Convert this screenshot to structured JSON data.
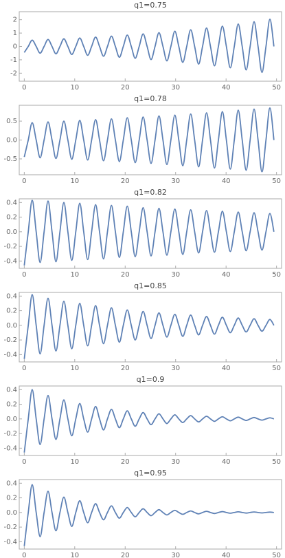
{
  "chart_data": [
    {
      "type": "line",
      "title": "q1=0.75",
      "color": "#5e81b5",
      "x": [
        0,
        0.79,
        1.57,
        2.36,
        3.14,
        3.93,
        4.71,
        5.5,
        6.28,
        7.07,
        7.85,
        8.64,
        9.42,
        10.21,
        11.0,
        11.78,
        12.57,
        13.35,
        14.14,
        14.92,
        15.71,
        16.49,
        17.28,
        18.06,
        18.85,
        19.63,
        20.42,
        21.21,
        21.99,
        22.78,
        23.56,
        24.35,
        25.13,
        25.92,
        26.7,
        27.49,
        28.27,
        29.06,
        29.85,
        30.63,
        31.42,
        32.2,
        32.99,
        33.77,
        34.56,
        35.34,
        36.13,
        36.91,
        37.7,
        38.48,
        39.27,
        40.06,
        40.84,
        41.63,
        42.41,
        43.2,
        43.98,
        44.77,
        45.55,
        46.34,
        47.12,
        47.91,
        48.69,
        49.48
      ],
      "values": [
        -0.45,
        0,
        0.47,
        0,
        -0.5,
        0,
        0.52,
        0,
        -0.55,
        0,
        0.57,
        0,
        -0.6,
        0,
        0.63,
        0,
        -0.66,
        0,
        0.7,
        0,
        -0.73,
        0,
        0.77,
        0,
        -0.81,
        0,
        0.85,
        0,
        -0.89,
        0,
        0.94,
        0,
        -0.98,
        0,
        1.03,
        0,
        -1.08,
        0,
        1.14,
        0,
        -1.19,
        0,
        1.25,
        0,
        -1.32,
        0,
        1.38,
        0,
        -1.45,
        0,
        1.52,
        0,
        -1.6,
        0,
        1.68,
        0,
        -1.76,
        0,
        1.85,
        0,
        -1.94,
        0,
        2.04,
        0
      ],
      "xlim": [
        -1,
        51
      ],
      "xticks": [
        0,
        10,
        20,
        30,
        40,
        50
      ],
      "ylim": [
        -2.6,
        2.6
      ],
      "yticks": [
        -2,
        -1,
        0,
        1,
        2
      ]
    },
    {
      "type": "line",
      "title": "q1=0.78",
      "color": "#5e81b5",
      "x": [
        0,
        0.79,
        1.57,
        2.36,
        3.14,
        3.93,
        4.71,
        5.5,
        6.28,
        7.07,
        7.85,
        8.64,
        9.42,
        10.21,
        11.0,
        11.78,
        12.57,
        13.35,
        14.14,
        14.92,
        15.71,
        16.49,
        17.28,
        18.06,
        18.85,
        19.63,
        20.42,
        21.21,
        21.99,
        22.78,
        23.56,
        24.35,
        25.13,
        25.92,
        26.7,
        27.49,
        28.27,
        29.06,
        29.85,
        30.63,
        31.42,
        32.2,
        32.99,
        33.77,
        34.56,
        35.34,
        36.13,
        36.91,
        37.7,
        38.48,
        39.27,
        40.06,
        40.84,
        41.63,
        42.41,
        43.2,
        43.98,
        44.77,
        45.55,
        46.34,
        47.12,
        47.91,
        48.69,
        49.48
      ],
      "values": [
        -0.45,
        0,
        0.46,
        0,
        -0.47,
        0,
        0.48,
        0,
        -0.49,
        0,
        0.5,
        0,
        -0.51,
        0,
        0.52,
        0,
        -0.53,
        0,
        0.54,
        0,
        -0.55,
        0,
        0.56,
        0,
        -0.57,
        0,
        0.59,
        0,
        -0.6,
        0,
        0.61,
        0,
        -0.62,
        0,
        0.64,
        0,
        -0.65,
        0,
        0.66,
        0,
        -0.68,
        0,
        0.69,
        0,
        -0.71,
        0,
        0.72,
        0,
        -0.74,
        0,
        0.75,
        0,
        -0.77,
        0,
        0.79,
        0,
        -0.8,
        0,
        0.82,
        0,
        -0.84,
        0,
        0.85,
        0
      ],
      "xlim": [
        -1,
        51
      ],
      "xticks": [
        0,
        10,
        20,
        30,
        40,
        50
      ],
      "ylim": [
        -0.92,
        0.92
      ],
      "yticks": [
        -0.5,
        {
          "value": 0,
          "label": "0.0"
        },
        0.5
      ]
    },
    {
      "type": "line",
      "title": "q1=0.82",
      "color": "#5e81b5",
      "x": [
        0,
        0.79,
        1.57,
        2.36,
        3.14,
        3.93,
        4.71,
        5.5,
        6.28,
        7.07,
        7.85,
        8.64,
        9.42,
        10.21,
        11.0,
        11.78,
        12.57,
        13.35,
        14.14,
        14.92,
        15.71,
        16.49,
        17.28,
        18.06,
        18.85,
        19.63,
        20.42,
        21.21,
        21.99,
        22.78,
        23.56,
        24.35,
        25.13,
        25.92,
        26.7,
        27.49,
        28.27,
        29.06,
        29.85,
        30.63,
        31.42,
        32.2,
        32.99,
        33.77,
        34.56,
        35.34,
        36.13,
        36.91,
        37.7,
        38.48,
        39.27,
        40.06,
        40.84,
        41.63,
        42.41,
        43.2,
        43.98,
        44.77,
        45.55,
        46.34,
        47.12,
        47.91,
        48.69,
        49.48
      ],
      "values": [
        -0.46,
        0,
        0.43,
        0,
        -0.42,
        0,
        0.42,
        0,
        -0.41,
        0,
        0.4,
        0,
        -0.39,
        0,
        0.39,
        0,
        -0.38,
        0,
        0.37,
        0,
        -0.37,
        0,
        0.36,
        0,
        -0.35,
        0,
        0.35,
        0,
        -0.34,
        0,
        0.33,
        0,
        -0.33,
        0,
        0.32,
        0,
        -0.32,
        0,
        0.31,
        0,
        -0.31,
        0,
        0.3,
        0,
        -0.29,
        0,
        0.29,
        0,
        -0.28,
        0,
        0.28,
        0,
        -0.27,
        0,
        0.27,
        0,
        -0.26,
        0,
        0.26,
        0,
        -0.25,
        0,
        0.25,
        0
      ],
      "xlim": [
        -1,
        51
      ],
      "xticks": [
        0,
        10,
        20,
        30,
        40,
        50
      ],
      "ylim": [
        -0.5,
        0.45
      ],
      "yticks": [
        -0.4,
        -0.2,
        {
          "value": 0,
          "label": "0.0"
        },
        0.2,
        0.4
      ]
    },
    {
      "type": "line",
      "title": "q1=0.85",
      "color": "#5e81b5",
      "x": [
        0,
        0.79,
        1.57,
        2.36,
        3.14,
        3.93,
        4.71,
        5.5,
        6.28,
        7.07,
        7.85,
        8.64,
        9.42,
        10.21,
        11.0,
        11.78,
        12.57,
        13.35,
        14.14,
        14.92,
        15.71,
        16.49,
        17.28,
        18.06,
        18.85,
        19.63,
        20.42,
        21.21,
        21.99,
        22.78,
        23.56,
        24.35,
        25.13,
        25.92,
        26.7,
        27.49,
        28.27,
        29.06,
        29.85,
        30.63,
        31.42,
        32.2,
        32.99,
        33.77,
        34.56,
        35.34,
        36.13,
        36.91,
        37.7,
        38.48,
        39.27,
        40.06,
        40.84,
        41.63,
        42.41,
        43.2,
        43.98,
        44.77,
        45.55,
        46.34,
        47.12,
        47.91,
        48.69,
        49.48
      ],
      "values": [
        -0.46,
        0,
        0.42,
        0,
        -0.39,
        0,
        0.37,
        0,
        -0.35,
        0,
        0.33,
        0,
        -0.32,
        0,
        0.3,
        0,
        -0.28,
        0,
        0.27,
        0,
        -0.25,
        0,
        0.24,
        0,
        -0.23,
        0,
        0.21,
        0,
        -0.2,
        0,
        0.19,
        0,
        -0.18,
        0,
        0.17,
        0,
        -0.16,
        0,
        0.15,
        0,
        -0.15,
        0,
        0.14,
        0,
        -0.13,
        0,
        0.12,
        0,
        -0.12,
        0,
        0.11,
        0,
        -0.1,
        0,
        0.1,
        0,
        -0.09,
        0,
        0.09,
        0,
        -0.08,
        0,
        0.08,
        0
      ],
      "xlim": [
        -1,
        51
      ],
      "xticks": [
        0,
        10,
        20,
        30,
        40,
        50
      ],
      "ylim": [
        -0.5,
        0.45
      ],
      "yticks": [
        -0.4,
        -0.2,
        {
          "value": 0,
          "label": "0.0"
        },
        0.2,
        0.4
      ]
    },
    {
      "type": "line",
      "title": "q1=0.9",
      "color": "#5e81b5",
      "x": [
        0,
        0.79,
        1.57,
        2.36,
        3.14,
        3.93,
        4.71,
        5.5,
        6.28,
        7.07,
        7.85,
        8.64,
        9.42,
        10.21,
        11.0,
        11.78,
        12.57,
        13.35,
        14.14,
        14.92,
        15.71,
        16.49,
        17.28,
        18.06,
        18.85,
        19.63,
        20.42,
        21.21,
        21.99,
        22.78,
        23.56,
        24.35,
        25.13,
        25.92,
        26.7,
        27.49,
        28.27,
        29.06,
        29.85,
        30.63,
        31.42,
        32.2,
        32.99,
        33.77,
        34.56,
        35.34,
        36.13,
        36.91,
        37.7,
        38.48,
        39.27,
        40.06,
        40.84,
        41.63,
        42.41,
        43.2,
        43.98,
        44.77,
        45.55,
        46.34,
        47.12,
        47.91,
        48.69,
        49.48
      ],
      "values": [
        -0.46,
        0,
        0.4,
        0,
        -0.35,
        0,
        0.32,
        0,
        -0.28,
        0,
        0.26,
        0,
        -0.23,
        0,
        0.21,
        0,
        -0.18,
        0,
        0.17,
        0,
        -0.15,
        0,
        0.13,
        0,
        -0.12,
        0,
        0.11,
        0,
        -0.1,
        0,
        0.087,
        0,
        -0.078,
        0,
        0.07,
        0,
        -0.063,
        0,
        0.056,
        0,
        -0.05,
        0,
        0.045,
        0,
        -0.041,
        0,
        0.036,
        0,
        -0.033,
        0,
        0.029,
        0,
        -0.026,
        0,
        0.024,
        0,
        -0.021,
        0,
        0.019,
        0,
        -0.017,
        0,
        0.015,
        0
      ],
      "xlim": [
        -1,
        51
      ],
      "xticks": [
        0,
        10,
        20,
        30,
        40,
        50
      ],
      "ylim": [
        -0.5,
        0.45
      ],
      "yticks": [
        -0.4,
        -0.2,
        {
          "value": 0,
          "label": "0.0"
        },
        0.2,
        0.4
      ]
    },
    {
      "type": "line",
      "title": "q1=0.95",
      "color": "#5e81b5",
      "x": [
        0,
        0.79,
        1.57,
        2.36,
        3.14,
        3.93,
        4.71,
        5.5,
        6.28,
        7.07,
        7.85,
        8.64,
        9.42,
        10.21,
        11.0,
        11.78,
        12.57,
        13.35,
        14.14,
        14.92,
        15.71,
        16.49,
        17.28,
        18.06,
        18.85,
        19.63,
        20.42,
        21.21,
        21.99,
        22.78,
        23.56,
        24.35,
        25.13,
        25.92,
        26.7,
        27.49,
        28.27,
        29.06,
        29.85,
        30.63,
        31.42,
        32.2,
        32.99,
        33.77,
        34.56,
        35.34,
        36.13,
        36.91,
        37.7,
        38.48,
        39.27,
        40.06,
        40.84,
        41.63,
        42.41,
        43.2,
        43.98,
        44.77,
        45.55,
        46.34,
        47.12,
        47.91,
        48.69,
        49.48
      ],
      "values": [
        -0.46,
        0,
        0.38,
        0,
        -0.33,
        0,
        0.29,
        0,
        -0.25,
        0,
        0.21,
        0,
        -0.19,
        0,
        0.16,
        0,
        -0.14,
        0,
        0.12,
        0,
        -0.1,
        0,
        0.09,
        0,
        -0.078,
        0,
        0.068,
        0,
        -0.059,
        0,
        0.051,
        0,
        -0.044,
        0,
        0.038,
        0,
        -0.033,
        0,
        0.029,
        0,
        -0.025,
        0,
        0.021,
        0,
        -0.019,
        0,
        0.016,
        0,
        -0.014,
        0,
        0.012,
        0,
        -0.01,
        0,
        0.009,
        0,
        -0.008,
        0,
        0.007,
        0,
        -0.006,
        0,
        0.005,
        0
      ],
      "xlim": [
        -1,
        51
      ],
      "xticks": [
        0,
        10,
        20,
        30,
        40,
        50
      ],
      "ylim": [
        -0.5,
        0.45
      ],
      "yticks": [
        -0.4,
        -0.2,
        {
          "value": 0,
          "label": "0.0"
        },
        0.2,
        0.4
      ]
    }
  ]
}
